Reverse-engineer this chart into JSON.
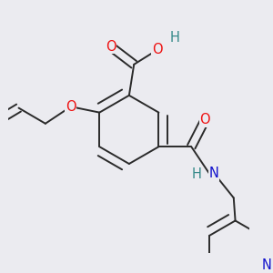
{
  "bg_color": "#ebebf0",
  "bond_color": "#2a2a2a",
  "bond_width": 1.4,
  "dbl_sep": 0.13,
  "atom_colors": {
    "O": "#ee1111",
    "N": "#1111cc",
    "H_O": "#338888",
    "H_N": "#338888"
  },
  "fs": 10.5
}
